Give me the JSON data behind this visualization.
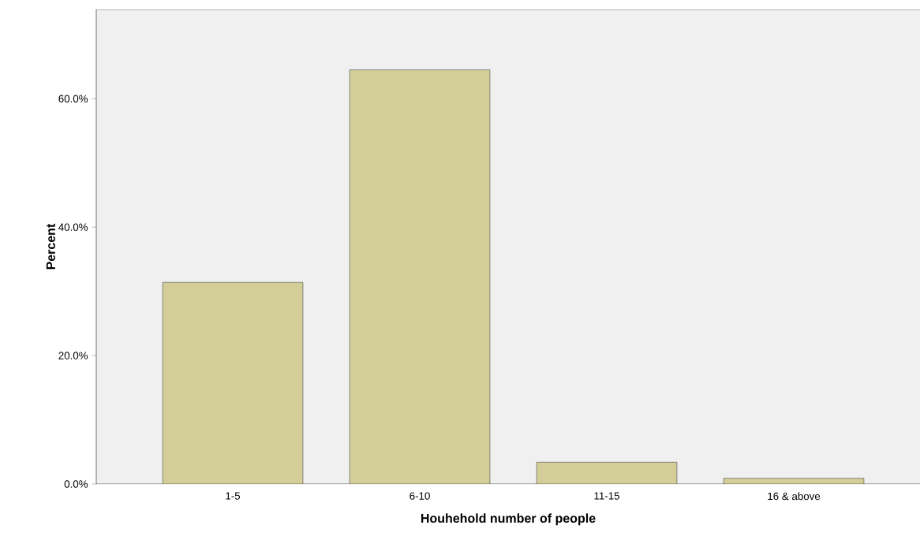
{
  "chart_data": {
    "type": "bar",
    "xlabel": "Houhehold number of people",
    "ylabel": "Percent",
    "categories": [
      "1-5",
      "6-10",
      "11-15",
      "16 & above"
    ],
    "values": [
      31.4,
      64.5,
      3.4,
      0.9
    ],
    "color": "#d3ce97",
    "ylim": [
      0,
      73.9
    ],
    "yticks": [
      {
        "value": 0,
        "label": "0.0%"
      },
      {
        "value": 20,
        "label": "20.0%"
      },
      {
        "value": 40,
        "label": "40.0%"
      },
      {
        "value": 60,
        "label": "60.0%"
      }
    ],
    "grid": false
  }
}
